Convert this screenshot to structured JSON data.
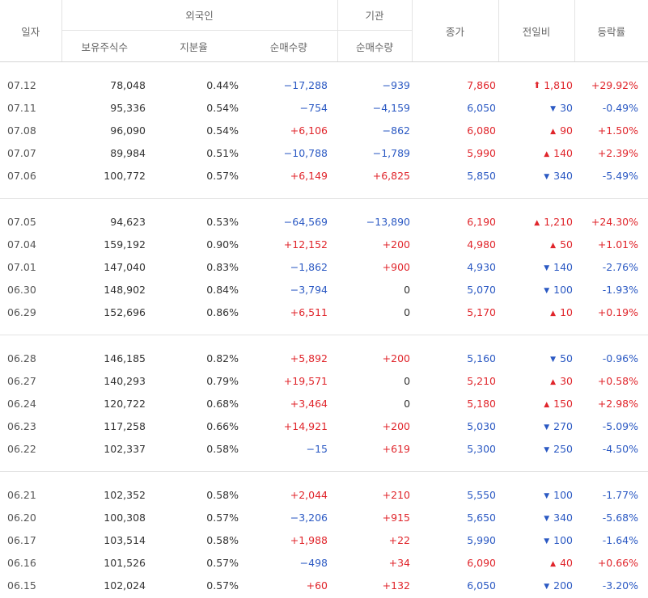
{
  "header": {
    "date": "일자",
    "foreign": "외국인",
    "institution": "기관",
    "close": "종가",
    "change": "전일비",
    "rate": "등락률",
    "foreign_holding": "보유주식수",
    "foreign_ratio": "지분율",
    "foreign_net": "순매수량",
    "institution_net": "순매수량"
  },
  "colors": {
    "up": "#e0252b",
    "down": "#2b59c3",
    "neutral": "#333333"
  },
  "groups": [
    [
      {
        "date": "07.12",
        "holding": "78,048",
        "ratio": "0.44%",
        "foreign_net": "−17,288",
        "inst_net": "−939",
        "close": "7,860",
        "dir": "up-limit",
        "change": "1,810",
        "rate": "+29.92%"
      },
      {
        "date": "07.11",
        "holding": "95,336",
        "ratio": "0.54%",
        "foreign_net": "−754",
        "inst_net": "−4,159",
        "close": "6,050",
        "dir": "down",
        "change": "30",
        "rate": "-0.49%"
      },
      {
        "date": "07.08",
        "holding": "96,090",
        "ratio": "0.54%",
        "foreign_net": "+6,106",
        "inst_net": "−862",
        "close": "6,080",
        "dir": "up",
        "change": "90",
        "rate": "+1.50%"
      },
      {
        "date": "07.07",
        "holding": "89,984",
        "ratio": "0.51%",
        "foreign_net": "−10,788",
        "inst_net": "−1,789",
        "close": "5,990",
        "dir": "up",
        "change": "140",
        "rate": "+2.39%"
      },
      {
        "date": "07.06",
        "holding": "100,772",
        "ratio": "0.57%",
        "foreign_net": "+6,149",
        "inst_net": "+6,825",
        "close": "5,850",
        "dir": "down",
        "change": "340",
        "rate": "-5.49%"
      }
    ],
    [
      {
        "date": "07.05",
        "holding": "94,623",
        "ratio": "0.53%",
        "foreign_net": "−64,569",
        "inst_net": "−13,890",
        "close": "6,190",
        "dir": "up",
        "change": "1,210",
        "rate": "+24.30%"
      },
      {
        "date": "07.04",
        "holding": "159,192",
        "ratio": "0.90%",
        "foreign_net": "+12,152",
        "inst_net": "+200",
        "close": "4,980",
        "dir": "up",
        "change": "50",
        "rate": "+1.01%"
      },
      {
        "date": "07.01",
        "holding": "147,040",
        "ratio": "0.83%",
        "foreign_net": "−1,862",
        "inst_net": "+900",
        "close": "4,930",
        "dir": "down",
        "change": "140",
        "rate": "-2.76%"
      },
      {
        "date": "06.30",
        "holding": "148,902",
        "ratio": "0.84%",
        "foreign_net": "−3,794",
        "inst_net": "0",
        "close": "5,070",
        "dir": "down",
        "change": "100",
        "rate": "-1.93%"
      },
      {
        "date": "06.29",
        "holding": "152,696",
        "ratio": "0.86%",
        "foreign_net": "+6,511",
        "inst_net": "0",
        "close": "5,170",
        "dir": "up",
        "change": "10",
        "rate": "+0.19%"
      }
    ],
    [
      {
        "date": "06.28",
        "holding": "146,185",
        "ratio": "0.82%",
        "foreign_net": "+5,892",
        "inst_net": "+200",
        "close": "5,160",
        "dir": "down",
        "change": "50",
        "rate": "-0.96%"
      },
      {
        "date": "06.27",
        "holding": "140,293",
        "ratio": "0.79%",
        "foreign_net": "+19,571",
        "inst_net": "0",
        "close": "5,210",
        "dir": "up",
        "change": "30",
        "rate": "+0.58%"
      },
      {
        "date": "06.24",
        "holding": "120,722",
        "ratio": "0.68%",
        "foreign_net": "+3,464",
        "inst_net": "0",
        "close": "5,180",
        "dir": "up",
        "change": "150",
        "rate": "+2.98%"
      },
      {
        "date": "06.23",
        "holding": "117,258",
        "ratio": "0.66%",
        "foreign_net": "+14,921",
        "inst_net": "+200",
        "close": "5,030",
        "dir": "down",
        "change": "270",
        "rate": "-5.09%"
      },
      {
        "date": "06.22",
        "holding": "102,337",
        "ratio": "0.58%",
        "foreign_net": "−15",
        "inst_net": "+619",
        "close": "5,300",
        "dir": "down",
        "change": "250",
        "rate": "-4.50%"
      }
    ],
    [
      {
        "date": "06.21",
        "holding": "102,352",
        "ratio": "0.58%",
        "foreign_net": "+2,044",
        "inst_net": "+210",
        "close": "5,550",
        "dir": "down",
        "change": "100",
        "rate": "-1.77%"
      },
      {
        "date": "06.20",
        "holding": "100,308",
        "ratio": "0.57%",
        "foreign_net": "−3,206",
        "inst_net": "+915",
        "close": "5,650",
        "dir": "down",
        "change": "340",
        "rate": "-5.68%"
      },
      {
        "date": "06.17",
        "holding": "103,514",
        "ratio": "0.58%",
        "foreign_net": "+1,988",
        "inst_net": "+22",
        "close": "5,990",
        "dir": "down",
        "change": "100",
        "rate": "-1.64%"
      },
      {
        "date": "06.16",
        "holding": "101,526",
        "ratio": "0.57%",
        "foreign_net": "−498",
        "inst_net": "+34",
        "close": "6,090",
        "dir": "up",
        "change": "40",
        "rate": "+0.66%"
      },
      {
        "date": "06.15",
        "holding": "102,024",
        "ratio": "0.57%",
        "foreign_net": "+60",
        "inst_net": "+132",
        "close": "6,050",
        "dir": "down",
        "change": "200",
        "rate": "-3.20%"
      }
    ]
  ]
}
